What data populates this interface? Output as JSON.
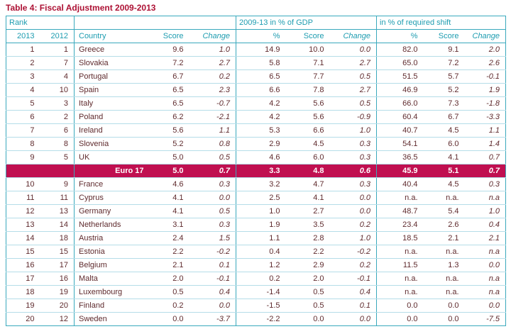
{
  "title": "Table 4: Fiscal Adjustment 2009-2013",
  "colors": {
    "title_red": "#ad1134",
    "header_teal": "#1d9cb0",
    "data_maroon": "#5f2b2e",
    "border_teal": "#3aa9bd",
    "row_line_teal": "#b5dde8",
    "highlight_bg": "#c00f50",
    "highlight_text": "#ffffff"
  },
  "chart_data": {
    "type": "table",
    "title": "Table 4: Fiscal Adjustment 2009-2013",
    "group_headers": [
      {
        "label": "Rank",
        "span": 2
      },
      {
        "label": "",
        "span": 3
      },
      {
        "label": "2009-13 in % of GDP",
        "span": 3
      },
      {
        "label": "in % of required shift",
        "span": 3
      }
    ],
    "columns": [
      "2013",
      "2012",
      "Country",
      "Score",
      "Change",
      "%",
      "Score",
      "Change",
      "%",
      "Score",
      "Change"
    ],
    "column_keys": [
      "rank-2013",
      "rank-2012",
      "country",
      "score",
      "change",
      "gdp-pct",
      "gdp-score",
      "gdp-change",
      "shift-pct",
      "shift-score",
      "shift-change"
    ],
    "rows": [
      {
        "cells": [
          "1",
          "1",
          "Greece",
          "9.6",
          "1.0",
          "14.9",
          "10.0",
          "0.0",
          "82.0",
          "9.1",
          "2.0"
        ],
        "highlight": false
      },
      {
        "cells": [
          "2",
          "7",
          "Slovakia",
          "7.2",
          "2.7",
          "5.8",
          "7.1",
          "2.7",
          "65.0",
          "7.2",
          "2.6"
        ],
        "highlight": false
      },
      {
        "cells": [
          "3",
          "4",
          "Portugal",
          "6.7",
          "0.2",
          "6.5",
          "7.7",
          "0.5",
          "51.5",
          "5.7",
          "-0.1"
        ],
        "highlight": false
      },
      {
        "cells": [
          "4",
          "10",
          "Spain",
          "6.5",
          "2.3",
          "6.6",
          "7.8",
          "2.7",
          "46.9",
          "5.2",
          "1.9"
        ],
        "highlight": false
      },
      {
        "cells": [
          "5",
          "3",
          "Italy",
          "6.5",
          "-0.7",
          "4.2",
          "5.6",
          "0.5",
          "66.0",
          "7.3",
          "-1.8"
        ],
        "highlight": false
      },
      {
        "cells": [
          "6",
          "2",
          "Poland",
          "6.2",
          "-2.1",
          "4.2",
          "5.6",
          "-0.9",
          "60.4",
          "6.7",
          "-3.3"
        ],
        "highlight": false
      },
      {
        "cells": [
          "7",
          "6",
          "Ireland",
          "5.6",
          "1.1",
          "5.3",
          "6.6",
          "1.0",
          "40.7",
          "4.5",
          "1.1"
        ],
        "highlight": false
      },
      {
        "cells": [
          "8",
          "8",
          "Slovenia",
          "5.2",
          "0.8",
          "2.9",
          "4.5",
          "0.3",
          "54.1",
          "6.0",
          "1.4"
        ],
        "highlight": false
      },
      {
        "cells": [
          "9",
          "5",
          "UK",
          "5.0",
          "0.5",
          "4.6",
          "6.0",
          "0.3",
          "36.5",
          "4.1",
          "0.7"
        ],
        "highlight": false
      },
      {
        "cells": [
          "",
          "",
          "Euro 17",
          "5.0",
          "0.7",
          "3.3",
          "4.8",
          "0.6",
          "45.9",
          "5.1",
          "0.7"
        ],
        "highlight": true
      },
      {
        "cells": [
          "10",
          "9",
          "France",
          "4.6",
          "0.3",
          "3.2",
          "4.7",
          "0.3",
          "40.4",
          "4.5",
          "0.3"
        ],
        "highlight": false
      },
      {
        "cells": [
          "11",
          "11",
          "Cyprus",
          "4.1",
          "0.0",
          "2.5",
          "4.1",
          "0.0",
          "n.a.",
          "n.a.",
          "n.a"
        ],
        "highlight": false
      },
      {
        "cells": [
          "12",
          "13",
          "Germany",
          "4.1",
          "0.5",
          "1.0",
          "2.7",
          "0.0",
          "48.7",
          "5.4",
          "1.0"
        ],
        "highlight": false
      },
      {
        "cells": [
          "13",
          "14",
          "Netherlands",
          "3.1",
          "0.3",
          "1.9",
          "3.5",
          "0.2",
          "23.4",
          "2.6",
          "0.4"
        ],
        "highlight": false
      },
      {
        "cells": [
          "14",
          "18",
          "Austria",
          "2.4",
          "1.5",
          "1.1",
          "2.8",
          "1.0",
          "18.5",
          "2.1",
          "2.1"
        ],
        "highlight": false
      },
      {
        "cells": [
          "15",
          "15",
          "Estonia",
          "2.2",
          "-0.2",
          "0.4",
          "2.2",
          "-0.2",
          "n.a.",
          "n.a.",
          "n.a"
        ],
        "highlight": false
      },
      {
        "cells": [
          "16",
          "17",
          "Belgium",
          "2.1",
          "0.1",
          "1.2",
          "2.9",
          "0.2",
          "11.5",
          "1.3",
          "0.0"
        ],
        "highlight": false
      },
      {
        "cells": [
          "17",
          "16",
          "Malta",
          "2.0",
          "-0.1",
          "0.2",
          "2.0",
          "-0.1",
          "n.a.",
          "n.a.",
          "n.a"
        ],
        "highlight": false
      },
      {
        "cells": [
          "18",
          "19",
          "Luxembourg",
          "0.5",
          "0.4",
          "-1.4",
          "0.5",
          "0.4",
          "n.a.",
          "n.a.",
          "n.a"
        ],
        "highlight": false
      },
      {
        "cells": [
          "19",
          "20",
          "Finland",
          "0.2",
          "0.0",
          "-1.5",
          "0.5",
          "0.1",
          "0.0",
          "0.0",
          "0.0"
        ],
        "highlight": false
      },
      {
        "cells": [
          "20",
          "12",
          "Sweden",
          "0.0",
          "-3.7",
          "-2.2",
          "0.0",
          "0.0",
          "0.0",
          "0.0",
          "-7.5"
        ],
        "highlight": false
      }
    ],
    "highlight_row_label": "Euro 17",
    "legend_position": "none",
    "grid": "row-lines"
  }
}
